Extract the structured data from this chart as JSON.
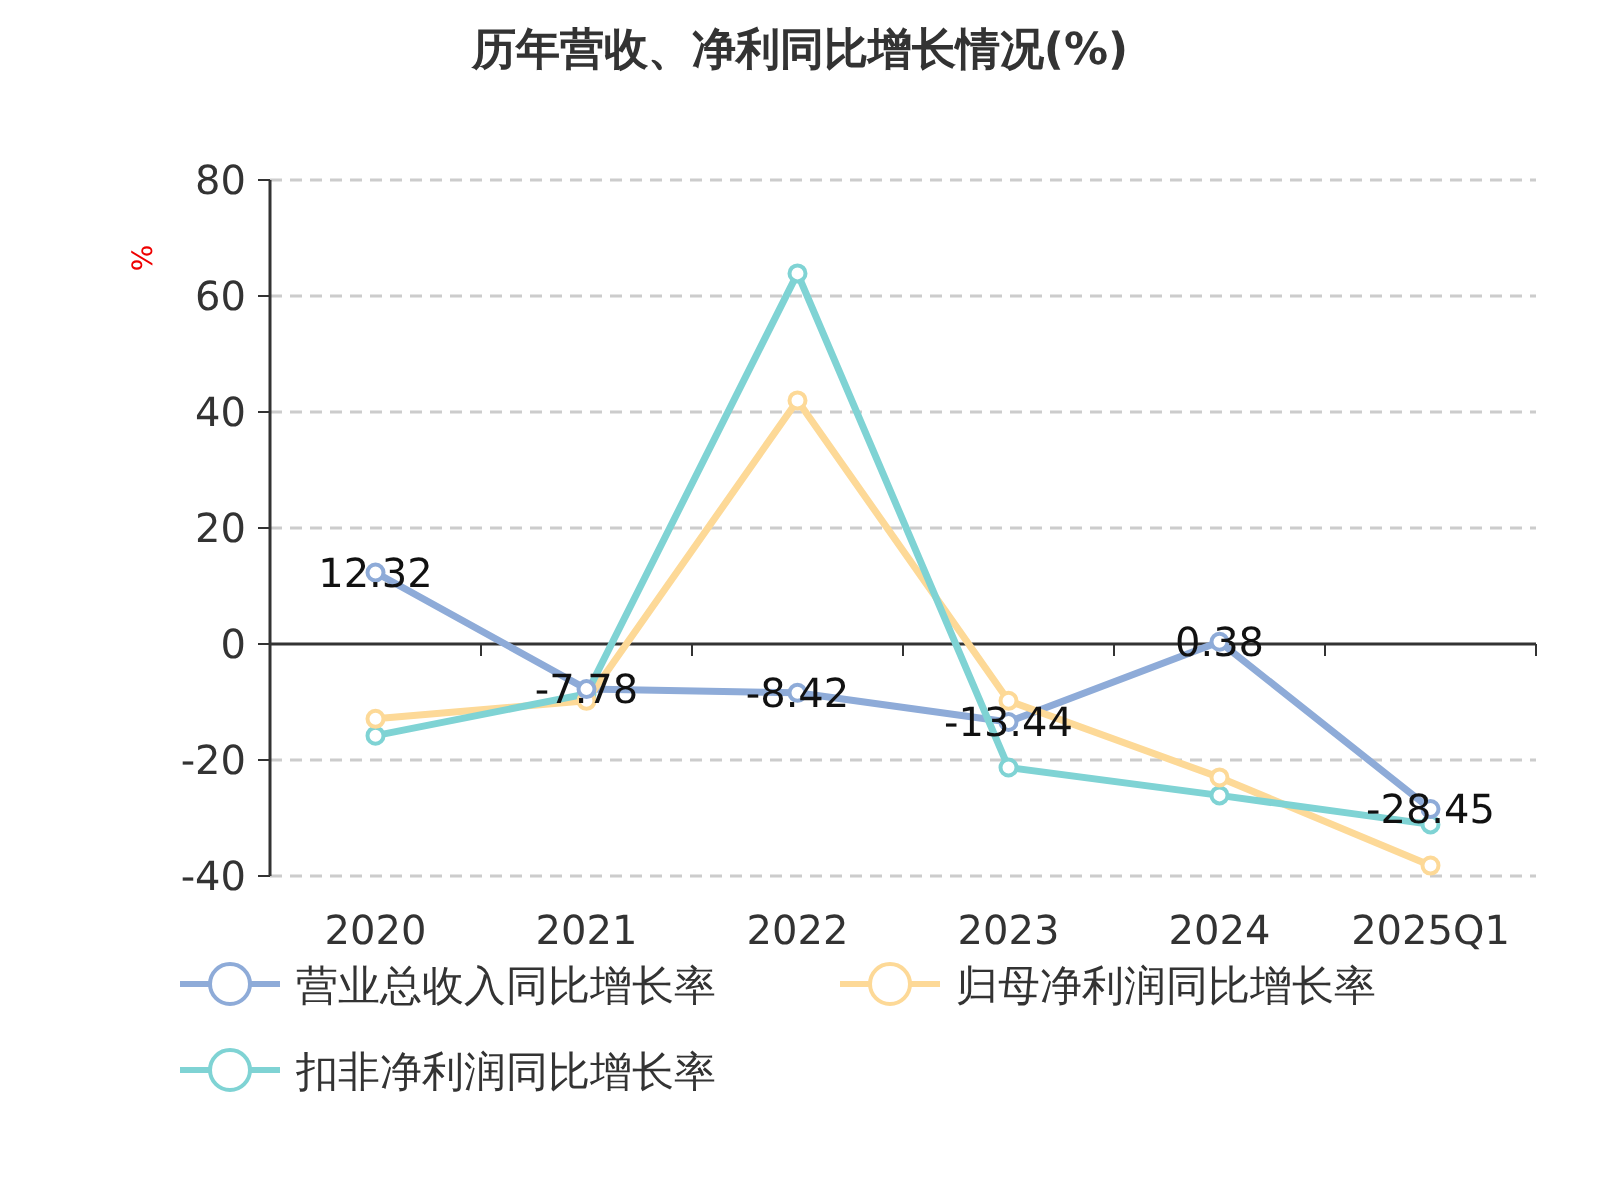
{
  "chart_data": {
    "type": "line",
    "title": "历年营收、净利同比增长情况(%)",
    "ylabel": "%",
    "categories": [
      "2020",
      "2021",
      "2022",
      "2023",
      "2024",
      "2025Q1"
    ],
    "series": [
      {
        "name": "营业总收入同比增长率",
        "color": "#8eabd8",
        "values": [
          12.32,
          -7.78,
          -8.42,
          -13.44,
          0.38,
          -28.45
        ],
        "value_labels": [
          "12.32",
          "-7.78",
          "-8.42",
          "-13.44",
          "0.38",
          "-28.45"
        ]
      },
      {
        "name": "归母净利润同比增长率",
        "color": "#fdd997",
        "values": [
          -12.9,
          -9.8,
          42.0,
          -9.8,
          -23.0,
          -38.2
        ]
      },
      {
        "name": "扣非净利润同比增长率",
        "color": "#7fd3d4",
        "values": [
          -15.8,
          -8.6,
          63.9,
          -21.3,
          -26.1,
          -31.1
        ]
      }
    ],
    "ylim": [
      -40,
      80
    ],
    "yticks": [
      -40,
      -20,
      0,
      20,
      40,
      60,
      80
    ],
    "grid": "y",
    "legend": "bottom",
    "marker": "circle"
  }
}
